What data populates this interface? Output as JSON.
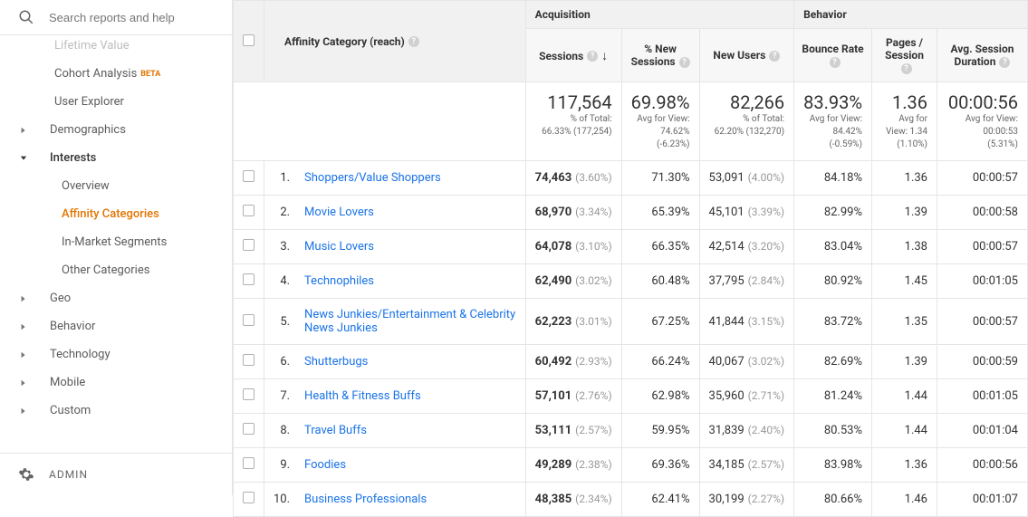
{
  "search": {
    "placeholder": "Search reports and help"
  },
  "nav": {
    "lifetime_value": "Lifetime Value",
    "cohort_analysis": "Cohort Analysis",
    "cohort_beta": "BETA",
    "user_explorer": "User Explorer",
    "demographics": "Demographics",
    "interests": "Interests",
    "overview": "Overview",
    "affinity_categories": "Affinity Categories",
    "in_market": "In-Market Segments",
    "other_categories": "Other Categories",
    "geo": "Geo",
    "behavior": "Behavior",
    "technology": "Technology",
    "mobile": "Mobile",
    "custom": "Custom"
  },
  "admin": "ADMIN",
  "headers": {
    "dimension": "Affinity Category (reach)",
    "acquisition": "Acquisition",
    "behavior": "Behavior",
    "sessions": "Sessions",
    "pct_new_sessions": "% New Sessions",
    "new_users": "New Users",
    "bounce_rate": "Bounce Rate",
    "pages_session": "Pages / Session",
    "avg_duration": "Avg. Session Duration"
  },
  "summary": {
    "sessions": {
      "big": "117,564",
      "l1": "% of Total:",
      "l2": "66.33% (177,254)"
    },
    "pct_new": {
      "big": "69.98%",
      "l1": "Avg for View:",
      "l2": "74.62%",
      "l3": "(-6.23%)"
    },
    "new_users": {
      "big": "82,266",
      "l1": "% of Total:",
      "l2": "62.20% (132,270)"
    },
    "bounce": {
      "big": "83.93%",
      "l1": "Avg for View:",
      "l2": "84.42%",
      "l3": "(-0.59%)"
    },
    "pages": {
      "big": "1.36",
      "l1": "Avg for",
      "l2": "View: 1.34",
      "l3": "(1.10%)"
    },
    "duration": {
      "big": "00:00:56",
      "l1": "Avg for View:",
      "l2": "00:00:53",
      "l3": "(5.31%)"
    }
  },
  "rows": [
    {
      "idx": "1.",
      "cat": "Shoppers/Value Shoppers",
      "sessions": "74,463",
      "sess_pct": "(3.60%)",
      "pct_new": "71.30%",
      "new_users": "53,091",
      "new_pct": "(4.00%)",
      "bounce": "84.18%",
      "pages": "1.36",
      "dur": "00:00:57"
    },
    {
      "idx": "2.",
      "cat": "Movie Lovers",
      "sessions": "68,970",
      "sess_pct": "(3.34%)",
      "pct_new": "65.39%",
      "new_users": "45,101",
      "new_pct": "(3.39%)",
      "bounce": "82.99%",
      "pages": "1.39",
      "dur": "00:00:58"
    },
    {
      "idx": "3.",
      "cat": "Music Lovers",
      "sessions": "64,078",
      "sess_pct": "(3.10%)",
      "pct_new": "66.35%",
      "new_users": "42,514",
      "new_pct": "(3.20%)",
      "bounce": "83.04%",
      "pages": "1.38",
      "dur": "00:00:57"
    },
    {
      "idx": "4.",
      "cat": "Technophiles",
      "sessions": "62,490",
      "sess_pct": "(3.02%)",
      "pct_new": "60.48%",
      "new_users": "37,795",
      "new_pct": "(2.84%)",
      "bounce": "80.92%",
      "pages": "1.45",
      "dur": "00:01:05"
    },
    {
      "idx": "5.",
      "cat": "News Junkies/Entertainment & Celebrity News Junkies",
      "sessions": "62,223",
      "sess_pct": "(3.01%)",
      "pct_new": "67.25%",
      "new_users": "41,844",
      "new_pct": "(3.15%)",
      "bounce": "83.72%",
      "pages": "1.35",
      "dur": "00:00:57"
    },
    {
      "idx": "6.",
      "cat": "Shutterbugs",
      "sessions": "60,492",
      "sess_pct": "(2.93%)",
      "pct_new": "66.24%",
      "new_users": "40,067",
      "new_pct": "(3.02%)",
      "bounce": "82.69%",
      "pages": "1.39",
      "dur": "00:00:59"
    },
    {
      "idx": "7.",
      "cat": "Health & Fitness Buffs",
      "sessions": "57,101",
      "sess_pct": "(2.76%)",
      "pct_new": "62.98%",
      "new_users": "35,960",
      "new_pct": "(2.71%)",
      "bounce": "81.24%",
      "pages": "1.44",
      "dur": "00:01:05"
    },
    {
      "idx": "8.",
      "cat": "Travel Buffs",
      "sessions": "53,111",
      "sess_pct": "(2.57%)",
      "pct_new": "59.95%",
      "new_users": "31,839",
      "new_pct": "(2.40%)",
      "bounce": "80.53%",
      "pages": "1.44",
      "dur": "00:01:04"
    },
    {
      "idx": "9.",
      "cat": "Foodies",
      "sessions": "49,289",
      "sess_pct": "(2.38%)",
      "pct_new": "69.36%",
      "new_users": "34,185",
      "new_pct": "(2.57%)",
      "bounce": "83.98%",
      "pages": "1.36",
      "dur": "00:00:56"
    },
    {
      "idx": "10.",
      "cat": "Business Professionals",
      "sessions": "48,385",
      "sess_pct": "(2.34%)",
      "pct_new": "62.41%",
      "new_users": "30,199",
      "new_pct": "(2.27%)",
      "bounce": "80.66%",
      "pages": "1.46",
      "dur": "00:01:07"
    }
  ]
}
